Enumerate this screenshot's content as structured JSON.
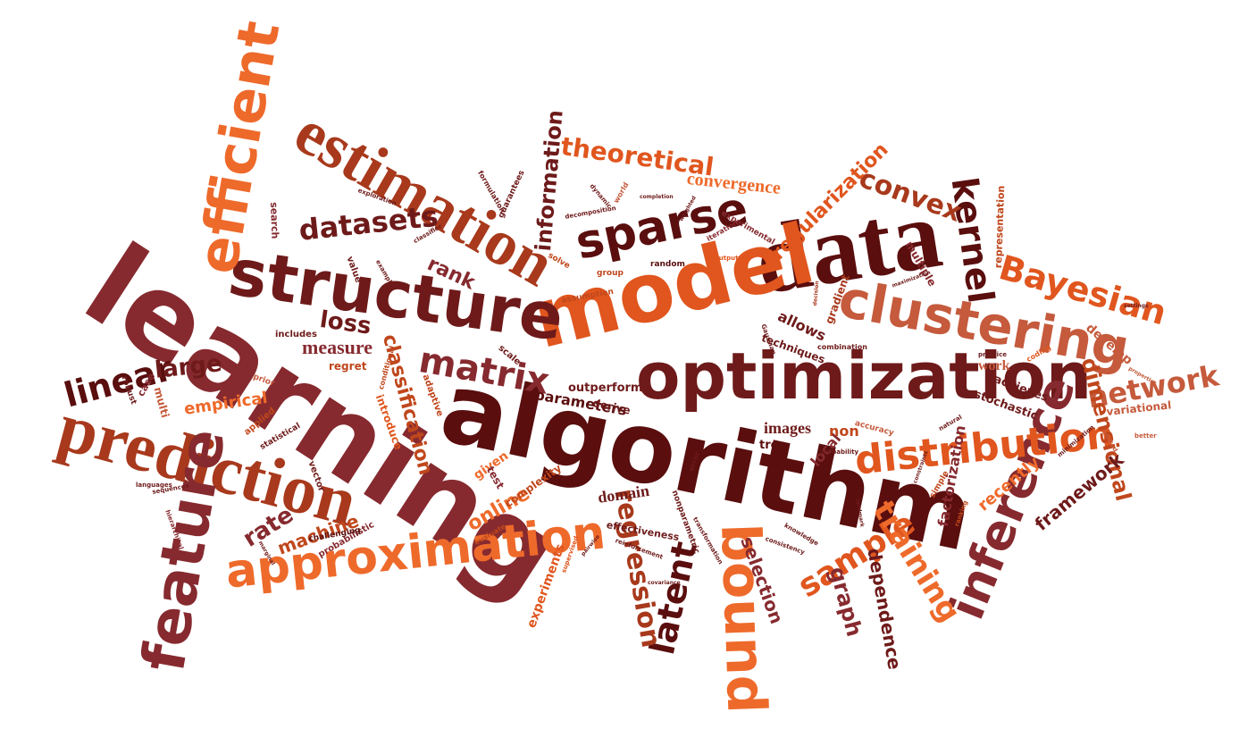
{
  "colors": {
    "dark": "#5a0e0e",
    "crimson": "#862a2f",
    "maroon": "#6e1a1a",
    "rust": "#a8391c",
    "brown_orange": "#c0471c",
    "orange": "#e0561e",
    "light_orange": "#ee6a2b",
    "salmon": "#c55a3c"
  },
  "words": {
    "learning": "learning",
    "algorithm": "algorithm",
    "data": "data",
    "model": "model",
    "optimization": "optimization",
    "structure": "structure",
    "prediction": "prediction",
    "estimation": "estimation",
    "feature": "feature",
    "efficient": "efficient",
    "clustering": "clustering",
    "approximation": "approximation",
    "bound": "bound",
    "inference": "inference",
    "sparse": "sparse",
    "distribution": "distribution",
    "kernel": "kernel",
    "bayesian": "Bayesian",
    "linear": "linear",
    "matrix": "matrix",
    "datasets": "datasets",
    "latent": "latent",
    "regression": "regression",
    "sample": "sample",
    "training": "training",
    "network": "network",
    "convex": "convex",
    "theoretical": "theoretical",
    "convergence": "convergence",
    "regularization": "regularization",
    "information": "information",
    "dimensional": "dimensional",
    "large": "large",
    "loss": "loss",
    "measure": "measure",
    "rank": "rank",
    "classification": "classification",
    "empirical": "empirical",
    "rate": "rate",
    "machine": "machine",
    "online": "online",
    "graph": "graph",
    "dependence": "dependence",
    "selection": "selection",
    "framework": "framework",
    "recently": "recently",
    "factorization": "factorization",
    "images": "images",
    "tree": "tree",
    "local": "local",
    "non": "non",
    "allows": "allows",
    "techniques": "techniques",
    "gradient": "gradient",
    "representation": "representation",
    "multiple": "multiple",
    "develop": "develop",
    "work": "work",
    "achieves": "achieves",
    "stochastic": "stochastic",
    "variational": "variational",
    "parameters": "parameters",
    "outperforms": "outperforms",
    "derive": "derive",
    "domain": "domain",
    "nonparametric": "nonparametric",
    "effectiveness": "effectiveness",
    "complexity": "complexity",
    "experiments": "experiments",
    "given": "given",
    "test": "test",
    "regret": "regret",
    "introduce": "introduce",
    "adaptive": "adaptive",
    "scale": "scale",
    "includes": "includes",
    "search": "search",
    "value": "value",
    "applied": "applied",
    "statistical": "statistical",
    "vector": "vector",
    "probabilistic": "probabilistic",
    "challenging": "challenging",
    "case": "case",
    "robust": "robust",
    "multi": "multi",
    "prior": "prior",
    "conditional": "conditional",
    "group": "group",
    "random": "random",
    "assumption": "assumption",
    "solve": "solve",
    "experimental": "experimental",
    "iteration": "iteration",
    "guarantees": "guarantees",
    "formulation": "formulation",
    "decomposition": "decomposition",
    "world": "world",
    "combination": "combination",
    "accuracy": "accuracy",
    "probability": "probability",
    "error": "error",
    "evaluate": "evaluate",
    "simple": "simple",
    "ranking": "ranking",
    "practice": "practice",
    "coding": "coding",
    "reinforcement": "reinforcement",
    "transformation": "transformation",
    "supervised": "supervised",
    "knowledge": "knowledge",
    "consistency": "consistency",
    "latent_small": "sequences",
    "languages": "languages",
    "hierarchical": "hierarchical",
    "natural": "natural",
    "better": "better",
    "limited": "limited",
    "minimization": "minimization",
    "dynamic": "dynamic",
    "classifier": "classifier",
    "example": "example",
    "exploration": "exploration",
    "completion": "completion",
    "weighted": "weighted",
    "output": "output",
    "gaussian": "Gaussian",
    "decision": "decision",
    "maximization": "maximization",
    "marginal": "marginal",
    "landmark": "landmark",
    "constraints": "constraints",
    "covariance": "covariance",
    "pairwise": "pairwise",
    "settings": "settings",
    "properties": "properties"
  }
}
